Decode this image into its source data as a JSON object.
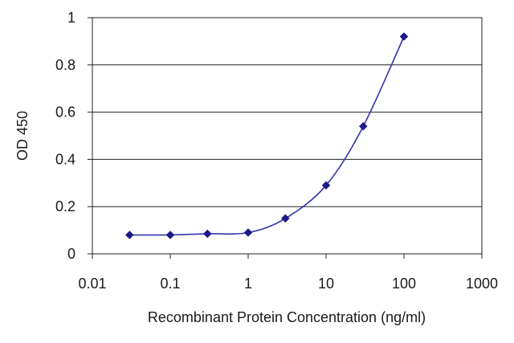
{
  "chart_data": {
    "type": "line",
    "title": "",
    "xlabel": "Recombinant Protein Concentration (ng/ml)",
    "ylabel": "OD 450",
    "x_scale": "log",
    "xlim": [
      0.01,
      1000
    ],
    "ylim": [
      0,
      1
    ],
    "x_ticks": [
      0.01,
      0.1,
      1,
      10,
      100,
      1000
    ],
    "x_tick_labels": [
      "0.01",
      "0.1",
      "1",
      "10",
      "100",
      "1000"
    ],
    "y_ticks": [
      0,
      0.2,
      0.4,
      0.6,
      0.8,
      1
    ],
    "y_tick_labels": [
      "0",
      "0.2",
      "0.4",
      "0.6",
      "0.8",
      "1"
    ],
    "grid": "horizontal",
    "legend": "none",
    "line_color": "#3333aa",
    "marker_color": "#1a1a8c",
    "marker": "diamond",
    "series": [
      {
        "x": [
          0.03,
          0.1,
          0.3,
          1,
          3,
          10,
          30,
          100
        ],
        "y": [
          0.08,
          0.08,
          0.085,
          0.09,
          0.15,
          0.29,
          0.54,
          0.92
        ]
      }
    ]
  }
}
